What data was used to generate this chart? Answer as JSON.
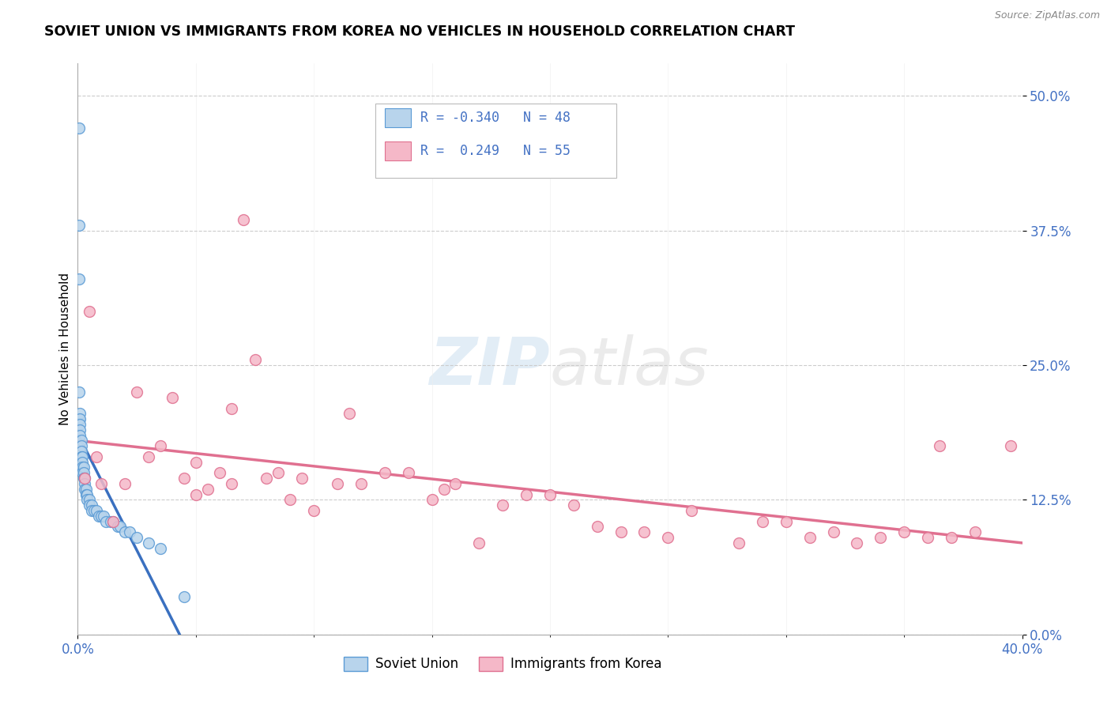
{
  "title": "SOVIET UNION VS IMMIGRANTS FROM KOREA NO VEHICLES IN HOUSEHOLD CORRELATION CHART",
  "source": "Source: ZipAtlas.com",
  "ylabel": "No Vehicles in Household",
  "ytick_vals": [
    0.0,
    12.5,
    25.0,
    37.5,
    50.0
  ],
  "xlim": [
    0.0,
    40.0
  ],
  "ylim": [
    0.0,
    53.0
  ],
  "r_soviet": -0.34,
  "n_soviet": 48,
  "r_korea": 0.249,
  "n_korea": 55,
  "color_soviet_fill": "#b8d4ec",
  "color_soviet_edge": "#5b9bd5",
  "color_korea_fill": "#f5b8c8",
  "color_korea_edge": "#e07090",
  "color_soviet_line": "#3a70c0",
  "color_korea_line": "#e07090",
  "color_blue_text": "#4472c4",
  "soviet_x": [
    0.05,
    0.05,
    0.05,
    0.05,
    0.05,
    0.1,
    0.1,
    0.1,
    0.1,
    0.1,
    0.15,
    0.15,
    0.15,
    0.15,
    0.2,
    0.2,
    0.2,
    0.2,
    0.25,
    0.25,
    0.25,
    0.3,
    0.3,
    0.3,
    0.35,
    0.35,
    0.4,
    0.4,
    0.5,
    0.5,
    0.6,
    0.6,
    0.7,
    0.8,
    0.9,
    1.0,
    1.1,
    1.2,
    1.4,
    1.5,
    1.7,
    1.8,
    2.0,
    2.2,
    2.5,
    3.0,
    3.5,
    4.5
  ],
  "soviet_y": [
    47.0,
    38.0,
    33.0,
    22.5,
    20.0,
    20.5,
    20.0,
    19.5,
    19.0,
    18.5,
    18.0,
    17.5,
    17.0,
    16.5,
    16.5,
    16.0,
    15.5,
    15.0,
    15.5,
    15.0,
    14.5,
    14.5,
    14.0,
    13.5,
    13.5,
    13.0,
    13.0,
    12.5,
    12.5,
    12.0,
    12.0,
    11.5,
    11.5,
    11.5,
    11.0,
    11.0,
    11.0,
    10.5,
    10.5,
    10.5,
    10.0,
    10.0,
    9.5,
    9.5,
    9.0,
    8.5,
    8.0,
    3.5
  ],
  "korea_x": [
    0.3,
    0.5,
    0.8,
    1.0,
    1.5,
    2.0,
    2.5,
    3.0,
    3.5,
    4.0,
    4.5,
    5.0,
    5.0,
    5.5,
    6.0,
    6.5,
    6.5,
    7.0,
    7.5,
    8.0,
    8.5,
    9.0,
    9.5,
    10.0,
    11.0,
    11.5,
    12.0,
    13.0,
    14.0,
    15.0,
    15.5,
    16.0,
    17.0,
    18.0,
    19.0,
    20.0,
    21.0,
    22.0,
    23.0,
    24.0,
    25.0,
    26.0,
    28.0,
    29.0,
    30.0,
    31.0,
    32.0,
    33.0,
    34.0,
    35.0,
    36.0,
    36.5,
    37.0,
    38.0,
    39.5
  ],
  "korea_y": [
    14.5,
    30.0,
    16.5,
    14.0,
    10.5,
    14.0,
    22.5,
    16.5,
    17.5,
    22.0,
    14.5,
    16.0,
    13.0,
    13.5,
    15.0,
    14.0,
    21.0,
    38.5,
    25.5,
    14.5,
    15.0,
    12.5,
    14.5,
    11.5,
    14.0,
    20.5,
    14.0,
    15.0,
    15.0,
    12.5,
    13.5,
    14.0,
    8.5,
    12.0,
    13.0,
    13.0,
    12.0,
    10.0,
    9.5,
    9.5,
    9.0,
    11.5,
    8.5,
    10.5,
    10.5,
    9.0,
    9.5,
    8.5,
    9.0,
    9.5,
    9.0,
    17.5,
    9.0,
    9.5,
    17.5
  ]
}
